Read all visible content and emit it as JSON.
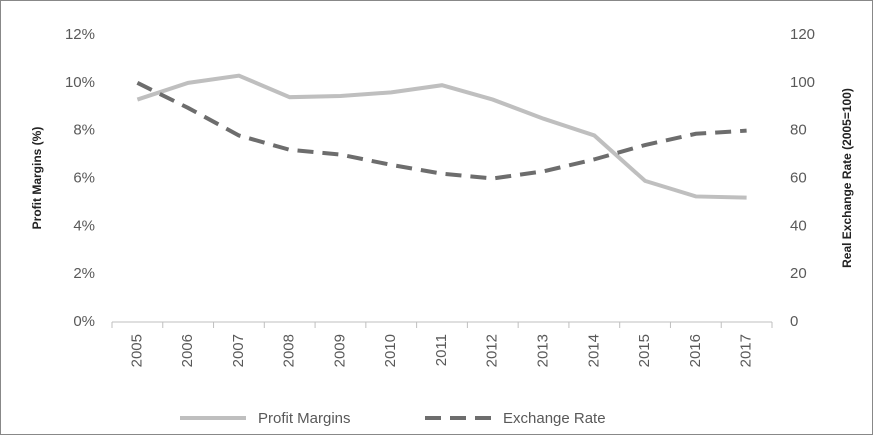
{
  "chart_data": {
    "type": "line",
    "categories": [
      "2005",
      "2006",
      "2007",
      "2008",
      "2009",
      "2010",
      "2011",
      "2012",
      "2013",
      "2014",
      "2015",
      "2016",
      "2017"
    ],
    "series": [
      {
        "name": "Profit Margins",
        "color": "#bfbfbf",
        "dash": false,
        "axis": "y",
        "values": [
          9.3,
          10.0,
          10.3,
          9.4,
          9.45,
          9.6,
          9.9,
          9.3,
          8.5,
          7.8,
          5.9,
          5.25,
          5.2
        ]
      },
      {
        "name": "Exchange Rate",
        "color": "#6d6d6d",
        "dash": true,
        "axis": "y2",
        "values": [
          100,
          89.5,
          78,
          72,
          70,
          65.7,
          62,
          60,
          63,
          68,
          74,
          78.7,
          80
        ]
      }
    ],
    "ylabel": "Profit Margins (%)",
    "y2label": "Real Exchange Rate (2005=100)",
    "ylim": [
      0,
      12
    ],
    "yticks": [
      {
        "value": 0,
        "label": "0%"
      },
      {
        "value": 2,
        "label": "2%"
      },
      {
        "value": 4,
        "label": "4%"
      },
      {
        "value": 6,
        "label": "6%"
      },
      {
        "value": 8,
        "label": "8%"
      },
      {
        "value": 10,
        "label": "10%"
      },
      {
        "value": 12,
        "label": "12%"
      }
    ],
    "y2lim": [
      0,
      120
    ],
    "y2ticks": [
      0,
      20,
      40,
      60,
      80,
      100,
      120
    ],
    "grid": false,
    "legend": "bottom"
  }
}
